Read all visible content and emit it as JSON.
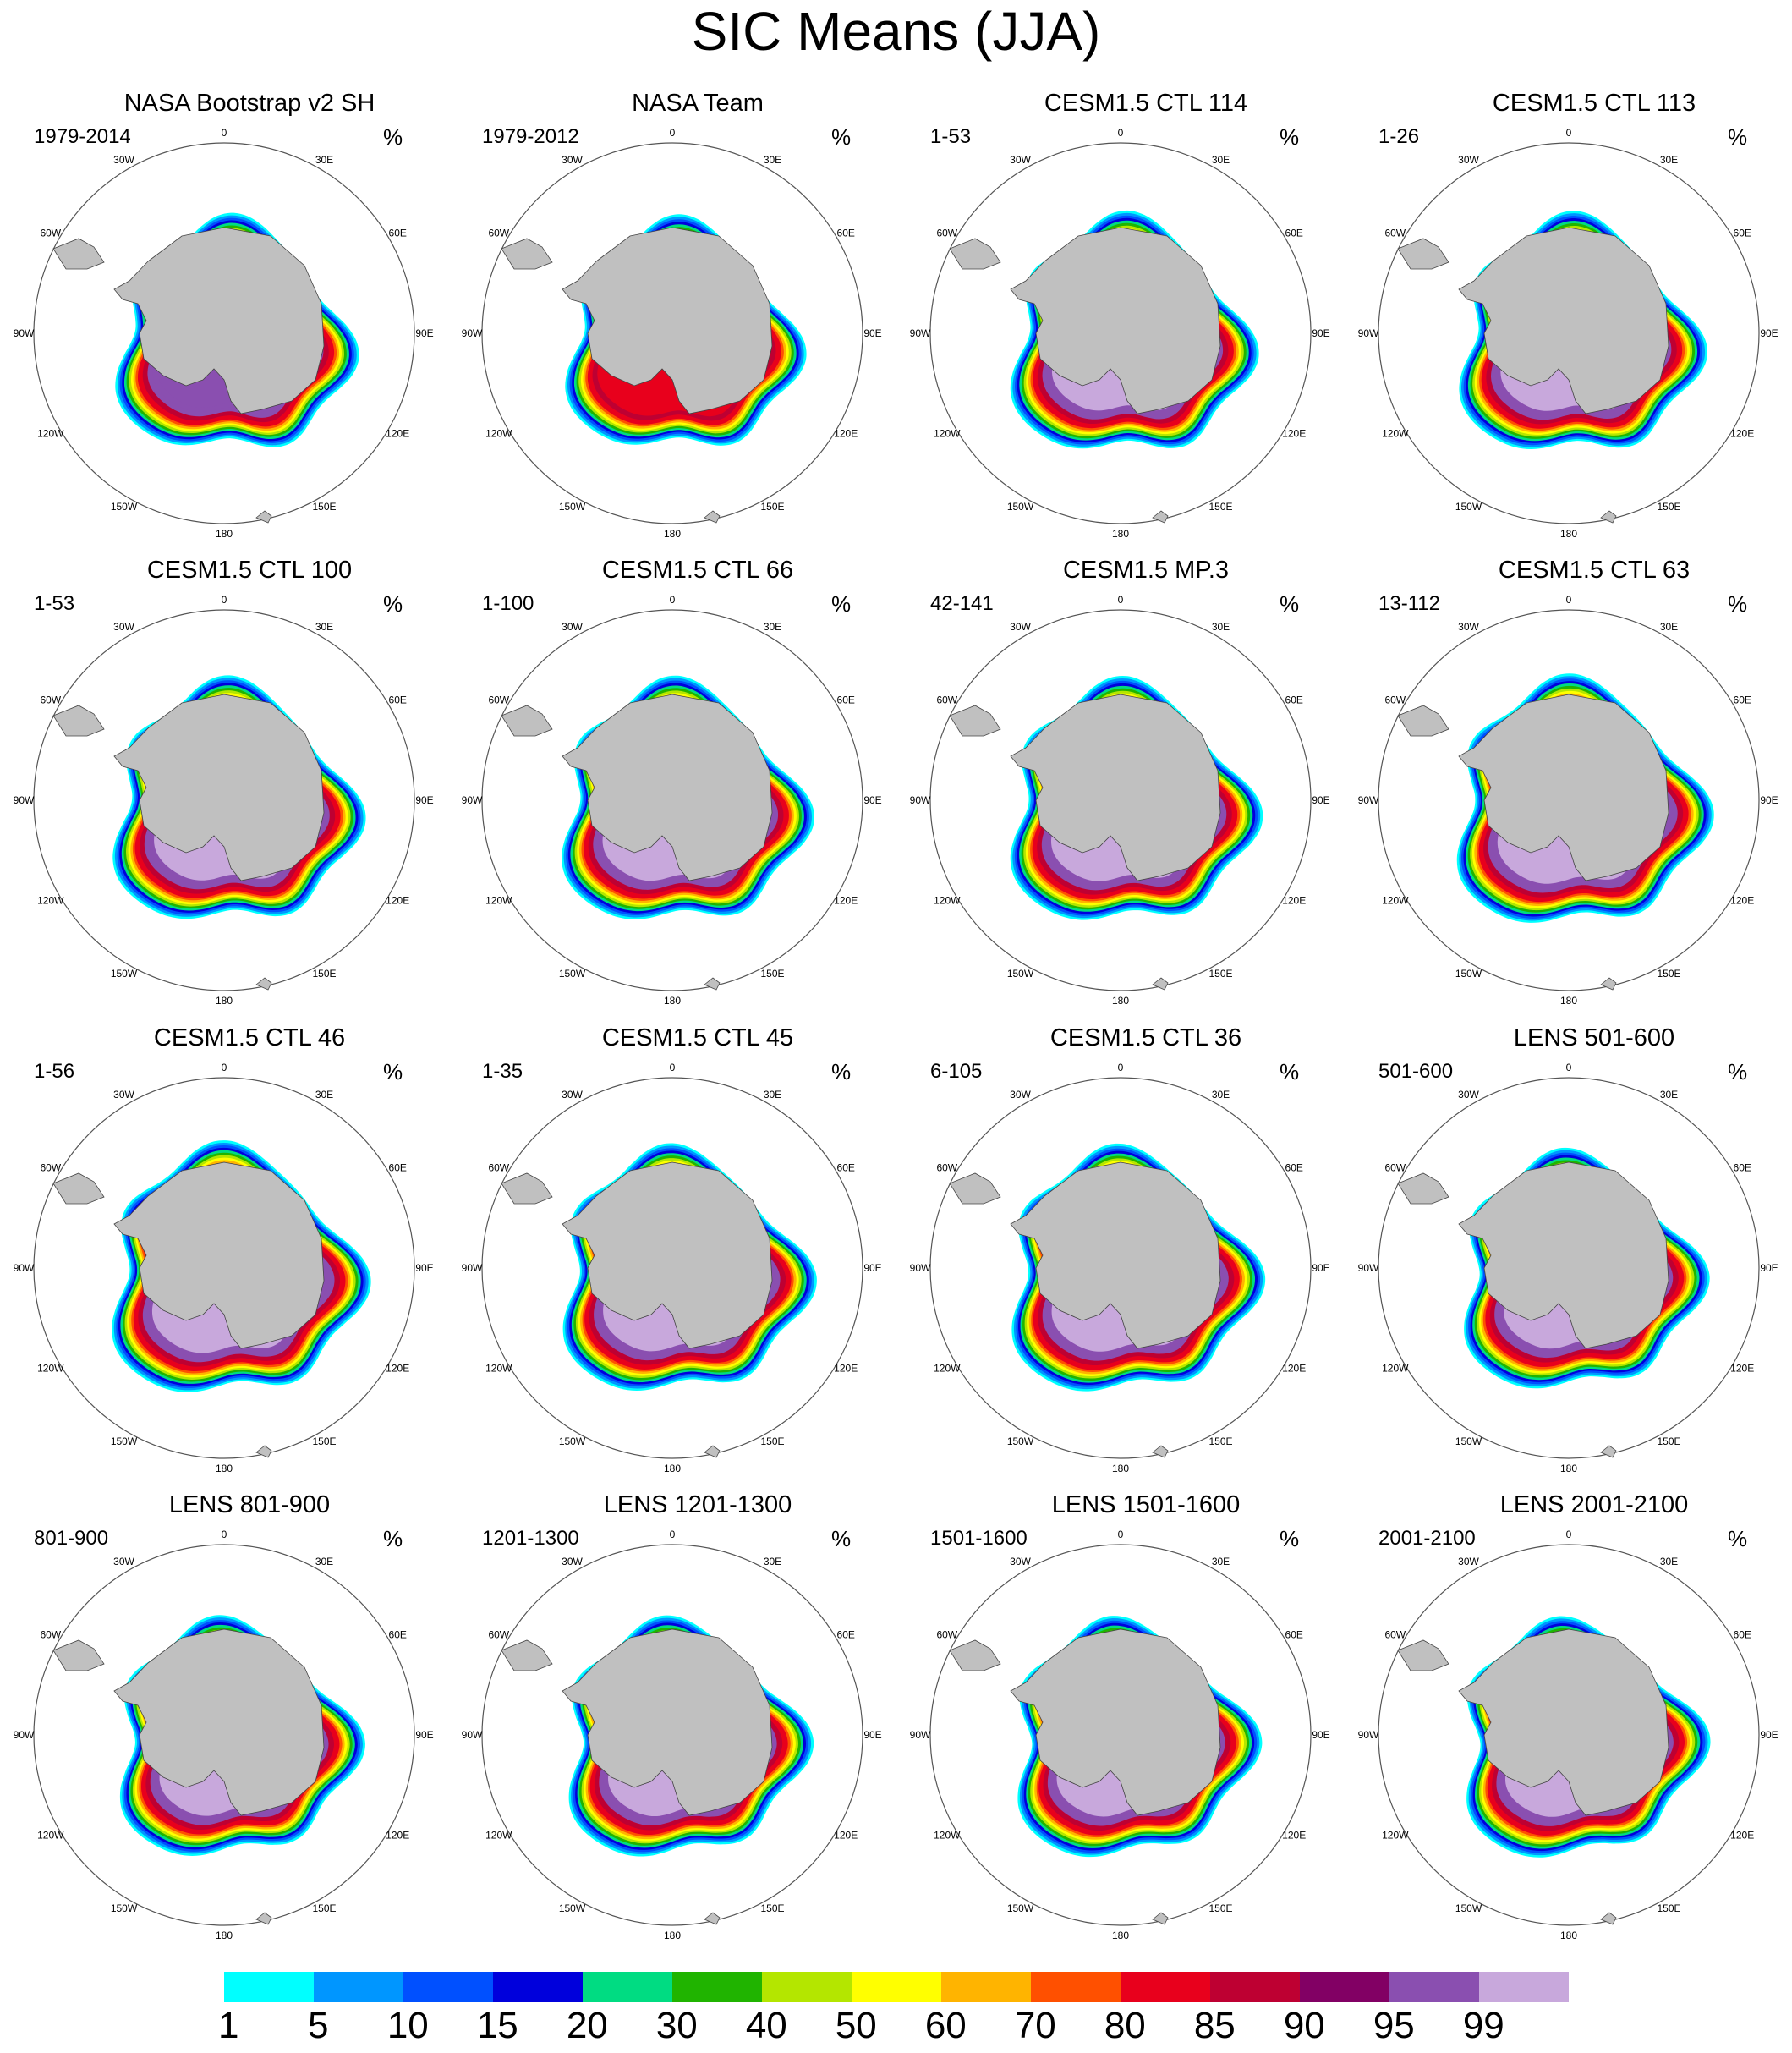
{
  "title": "SIC Means (JJA)",
  "units": "%",
  "longitude_labels": [
    "0",
    "30E",
    "60E",
    "90E",
    "120E",
    "150E",
    "180",
    "150W",
    "120W",
    "90W",
    "60W",
    "30W"
  ],
  "panels": [
    {
      "title": "NASA Bootstrap v2 SH",
      "period": "1979-2014",
      "ice_edge_scale": 0.98,
      "core_color": "#8a4fb0",
      "inner_red": true
    },
    {
      "title": "NASA Team",
      "period": "1979-2012",
      "ice_edge_scale": 0.97,
      "core_color": "#e8001c",
      "inner_red": true
    },
    {
      "title": "CESM1.5 CTL 114",
      "period": "1-53",
      "ice_edge_scale": 1.0,
      "core_color": "#8a4fb0",
      "inner_red": false
    },
    {
      "title": "CESM1.5 CTL 113",
      "period": "1-26",
      "ice_edge_scale": 1.0,
      "core_color": "#8a4fb0",
      "inner_red": false
    },
    {
      "title": "CESM1.5 CTL 100",
      "period": "1-53",
      "ice_edge_scale": 1.02,
      "core_color": "#8a4fb0",
      "inner_red": false
    },
    {
      "title": "CESM1.5 CTL 66",
      "period": "1-100",
      "ice_edge_scale": 1.02,
      "core_color": "#8a4fb0",
      "inner_red": false
    },
    {
      "title": "CESM1.5 MP.3",
      "period": "42-141",
      "ice_edge_scale": 1.02,
      "core_color": "#8a4fb0",
      "inner_red": false
    },
    {
      "title": "CESM1.5 CTL 63",
      "period": "13-112",
      "ice_edge_scale": 1.04,
      "core_color": "#8a4fb0",
      "inner_red": false
    },
    {
      "title": "CESM1.5 CTL 46",
      "period": "1-56",
      "ice_edge_scale": 1.05,
      "core_color": "#8a4fb0",
      "inner_red": false
    },
    {
      "title": "CESM1.5 CTL 45",
      "period": "1-35",
      "ice_edge_scale": 1.03,
      "core_color": "#8a4fb0",
      "inner_red": false
    },
    {
      "title": "CESM1.5 CTL 36",
      "period": "6-105",
      "ice_edge_scale": 1.03,
      "core_color": "#8a4fb0",
      "inner_red": false
    },
    {
      "title": "LENS 501-600",
      "period": "501-600",
      "ice_edge_scale": 1.0,
      "core_color": "#8a4fb0",
      "inner_red": false
    },
    {
      "title": "LENS 801-900",
      "period": "801-900",
      "ice_edge_scale": 1.0,
      "core_color": "#8a4fb0",
      "inner_red": false
    },
    {
      "title": "LENS 1201-1300",
      "period": "1201-1300",
      "ice_edge_scale": 1.0,
      "core_color": "#8a4fb0",
      "inner_red": false
    },
    {
      "title": "LENS 1501-1600",
      "period": "1501-1600",
      "ice_edge_scale": 1.0,
      "core_color": "#8a4fb0",
      "inner_red": false
    },
    {
      "title": "LENS 2001-2100",
      "period": "2001-2100",
      "ice_edge_scale": 1.0,
      "core_color": "#8a4fb0",
      "inner_red": false
    }
  ],
  "colorbar": {
    "labels": [
      "1",
      "5",
      "10",
      "15",
      "20",
      "30",
      "40",
      "50",
      "60",
      "70",
      "80",
      "85",
      "90",
      "95",
      "99"
    ],
    "colors": [
      "#00ffff",
      "#0096ff",
      "#0050ff",
      "#0000dc",
      "#00dc82",
      "#20b400",
      "#b4e600",
      "#ffff00",
      "#ffb400",
      "#ff5000",
      "#e8001c",
      "#be0032",
      "#820064",
      "#8a4fb0",
      "#c8a8dc"
    ]
  }
}
